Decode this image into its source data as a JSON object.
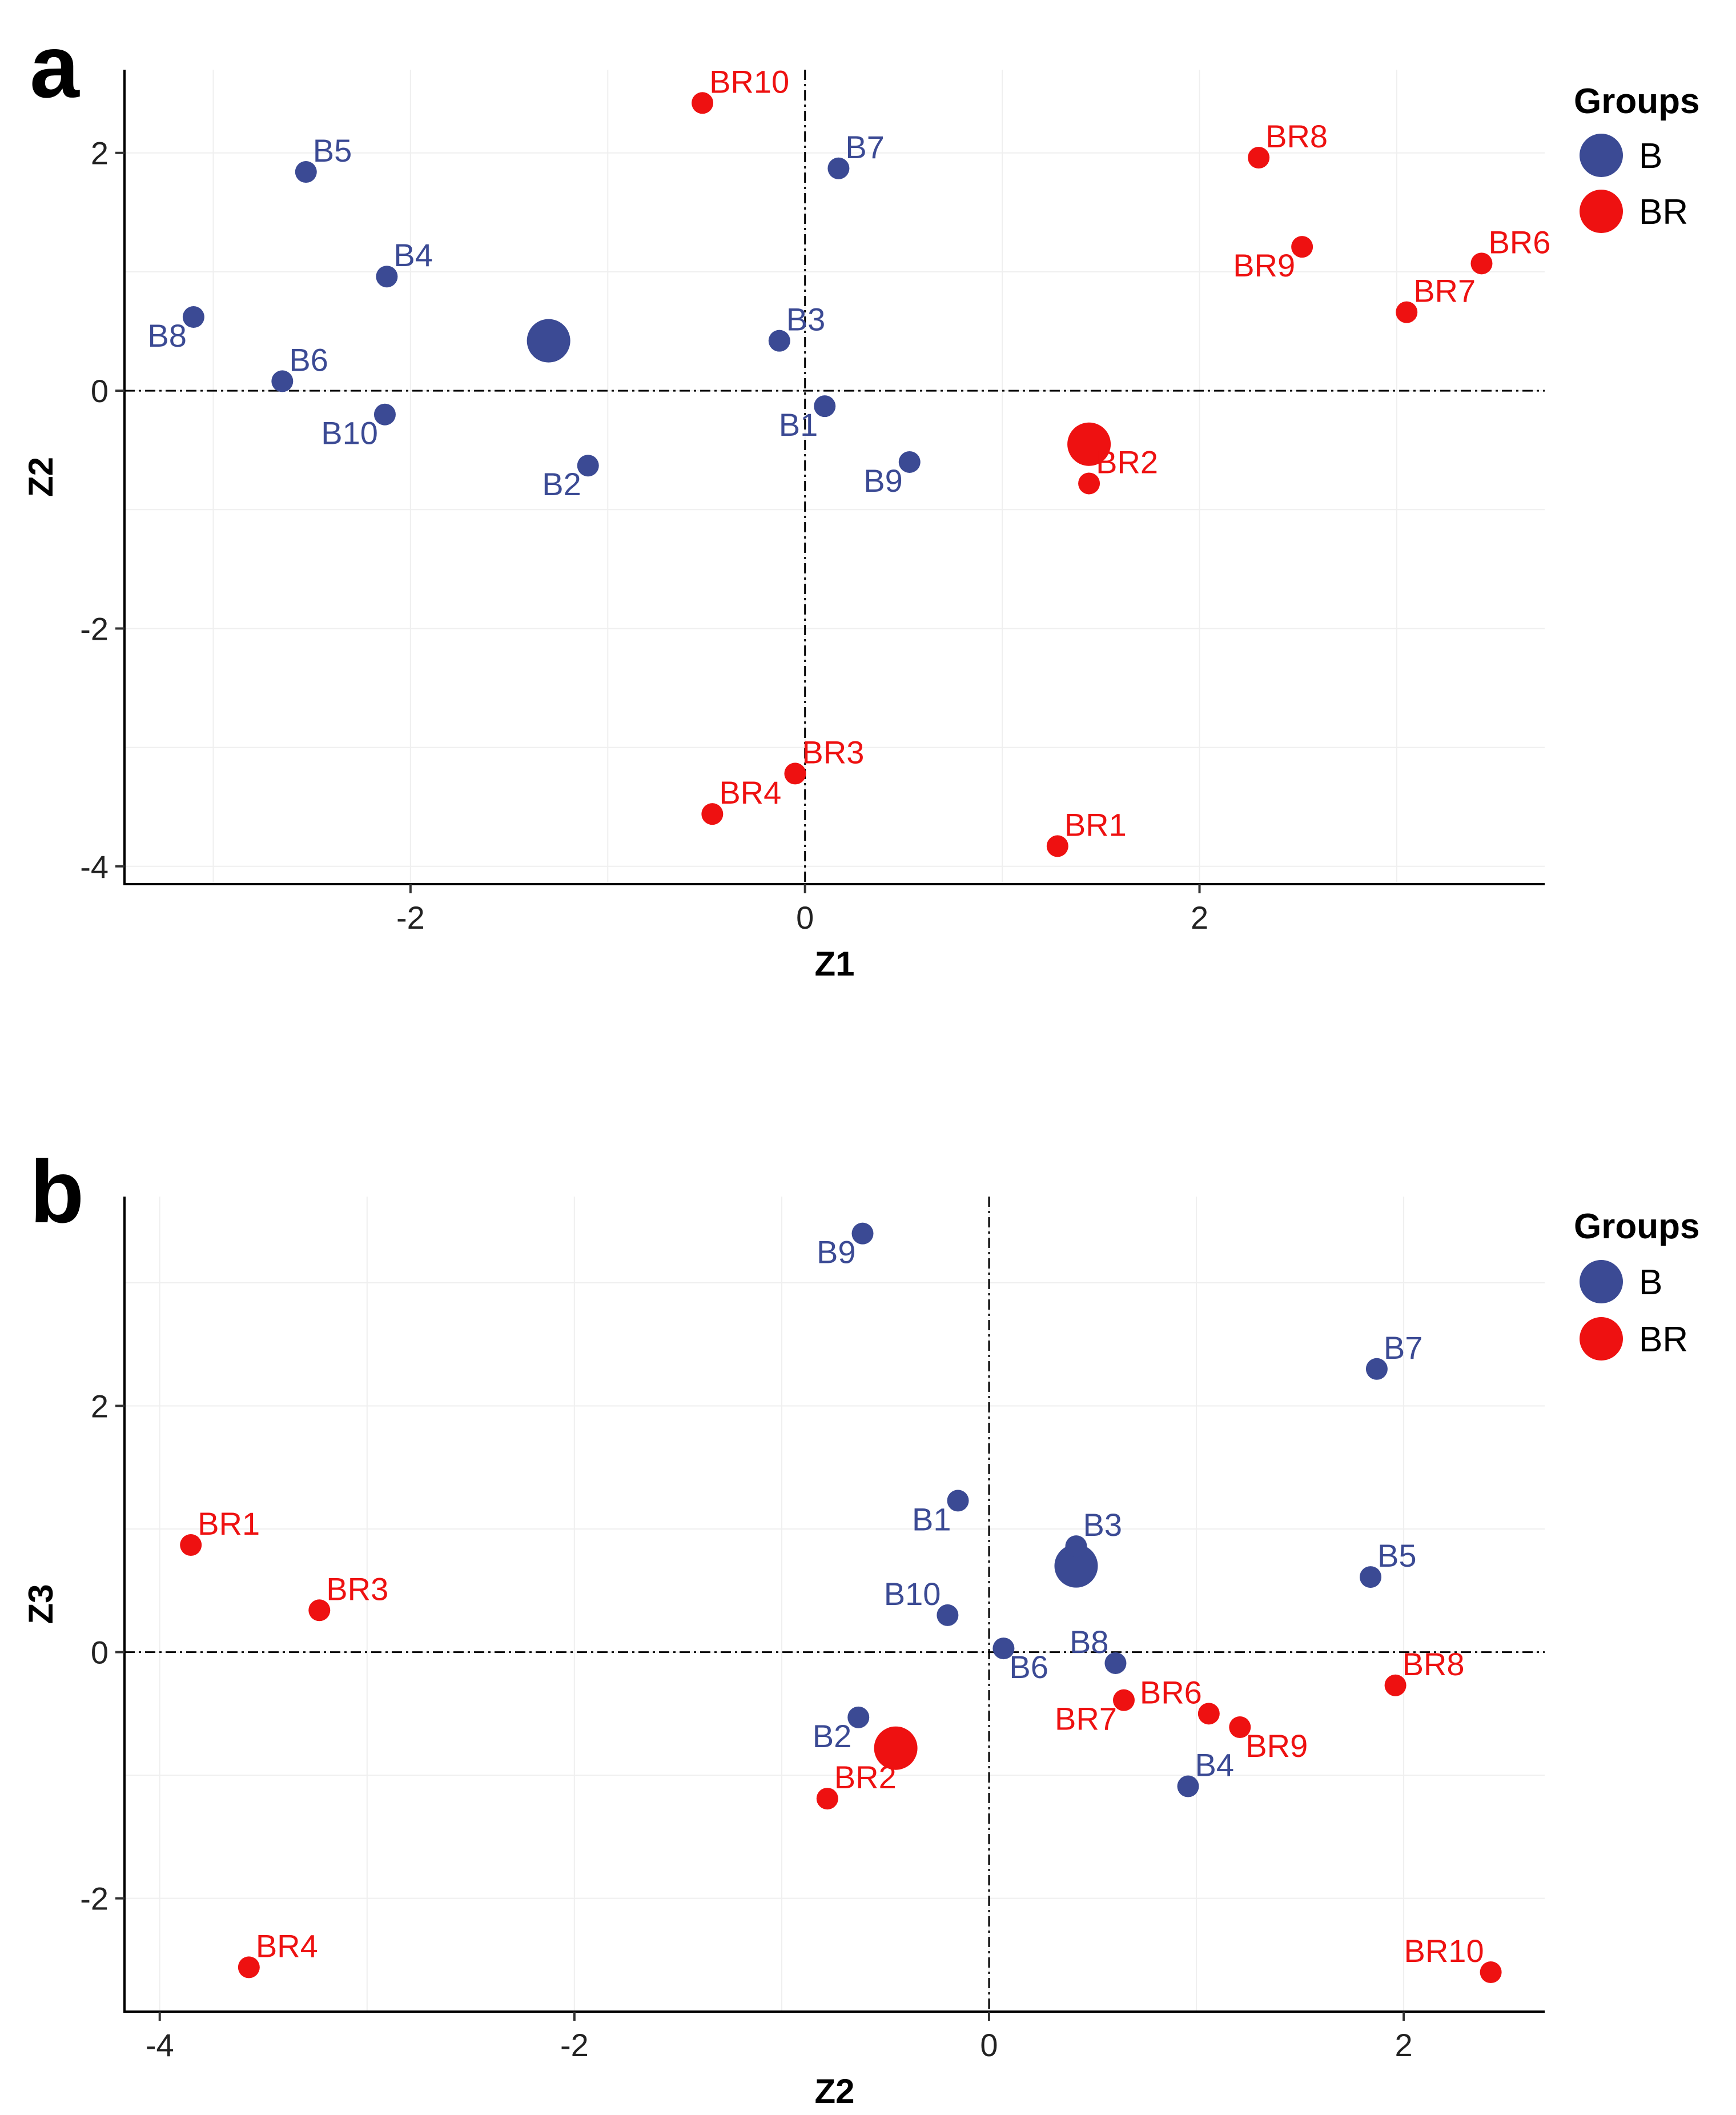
{
  "colors": {
    "B": "#3b4a94",
    "BR": "#ee1111"
  },
  "legend": {
    "title": "Groups",
    "items": [
      {
        "label": "B",
        "group": "B"
      },
      {
        "label": "BR",
        "group": "BR"
      }
    ]
  },
  "chart_data": [
    {
      "panel": "a",
      "type": "scatter",
      "xlabel": "Z1",
      "ylabel": "Z2",
      "xlim": [
        -3.45,
        3.75
      ],
      "ylim": [
        -4.15,
        2.7
      ],
      "xticks": [
        -2,
        0,
        2
      ],
      "yticks": [
        -4,
        -2,
        0,
        2
      ],
      "reference_lines": {
        "x": 0,
        "y": 0
      },
      "centroids": [
        {
          "group": "B",
          "x": -1.3,
          "y": 0.42
        },
        {
          "group": "BR",
          "x": 1.44,
          "y": -0.45
        }
      ],
      "points": [
        {
          "label": "B1",
          "group": "B",
          "x": 0.1,
          "y": -0.13,
          "anchor": "bottomleft"
        },
        {
          "label": "B2",
          "group": "B",
          "x": -1.1,
          "y": -0.63,
          "anchor": "bottomleft"
        },
        {
          "label": "B3",
          "group": "B",
          "x": -0.13,
          "y": 0.42,
          "anchor": "topright"
        },
        {
          "label": "B4",
          "group": "B",
          "x": -2.12,
          "y": 0.96,
          "anchor": "topright"
        },
        {
          "label": "B5",
          "group": "B",
          "x": -2.53,
          "y": 1.84,
          "anchor": "topright"
        },
        {
          "label": "B6",
          "group": "B",
          "x": -2.65,
          "y": 0.08,
          "anchor": "topright"
        },
        {
          "label": "B7",
          "group": "B",
          "x": 0.17,
          "y": 1.87,
          "anchor": "topright"
        },
        {
          "label": "B8",
          "group": "B",
          "x": -3.1,
          "y": 0.62,
          "anchor": "bottomleft"
        },
        {
          "label": "B9",
          "group": "B",
          "x": 0.53,
          "y": -0.6,
          "anchor": "bottomleft"
        },
        {
          "label": "B10",
          "group": "B",
          "x": -2.13,
          "y": -0.2,
          "anchor": "bottomleft"
        },
        {
          "label": "BR1",
          "group": "BR",
          "x": 1.28,
          "y": -3.83,
          "anchor": "topright"
        },
        {
          "label": "BR2",
          "group": "BR",
          "x": 1.44,
          "y": -0.78,
          "anchor": "topright"
        },
        {
          "label": "BR3",
          "group": "BR",
          "x": -0.05,
          "y": -3.22,
          "anchor": "topright"
        },
        {
          "label": "BR4",
          "group": "BR",
          "x": -0.47,
          "y": -3.56,
          "anchor": "topright"
        },
        {
          "label": "BR6",
          "group": "BR",
          "x": 3.43,
          "y": 1.07,
          "anchor": "topright"
        },
        {
          "label": "BR7",
          "group": "BR",
          "x": 3.05,
          "y": 0.66,
          "anchor": "topright"
        },
        {
          "label": "BR8",
          "group": "BR",
          "x": 2.3,
          "y": 1.96,
          "anchor": "topright"
        },
        {
          "label": "BR9",
          "group": "BR",
          "x": 2.52,
          "y": 1.21,
          "anchor": "bottomleft"
        },
        {
          "label": "BR10",
          "group": "BR",
          "x": -0.52,
          "y": 2.42,
          "anchor": "topright"
        }
      ]
    },
    {
      "panel": "b",
      "type": "scatter",
      "xlabel": "Z2",
      "ylabel": "Z3",
      "xlim": [
        -4.17,
        2.68
      ],
      "ylim": [
        -2.92,
        3.7
      ],
      "xticks": [
        -4,
        -2,
        0,
        2
      ],
      "yticks": [
        -2,
        0,
        2
      ],
      "reference_lines": {
        "x": 0,
        "y": 0
      },
      "centroids": [
        {
          "group": "B",
          "x": 0.42,
          "y": 0.7
        },
        {
          "group": "BR",
          "x": -0.45,
          "y": -0.78
        }
      ],
      "points": [
        {
          "label": "B1",
          "group": "B",
          "x": -0.15,
          "y": 1.23,
          "anchor": "bottomleft"
        },
        {
          "label": "B2",
          "group": "B",
          "x": -0.63,
          "y": -0.53,
          "anchor": "bottomleft"
        },
        {
          "label": "B3",
          "group": "B",
          "x": 0.42,
          "y": 0.86,
          "anchor": "topright"
        },
        {
          "label": "B4",
          "group": "B",
          "x": 0.96,
          "y": -1.09,
          "anchor": "topright"
        },
        {
          "label": "B5",
          "group": "B",
          "x": 1.84,
          "y": 0.61,
          "anchor": "topright"
        },
        {
          "label": "B6",
          "group": "B",
          "x": 0.07,
          "y": 0.03,
          "anchor": "bottomright"
        },
        {
          "label": "B7",
          "group": "B",
          "x": 1.87,
          "y": 2.3,
          "anchor": "topright"
        },
        {
          "label": "B8",
          "group": "B",
          "x": 0.61,
          "y": -0.09,
          "anchor": "topleft"
        },
        {
          "label": "B9",
          "group": "B",
          "x": -0.61,
          "y": 3.4,
          "anchor": "bottomleft"
        },
        {
          "label": "B10",
          "group": "B",
          "x": -0.2,
          "y": 0.3,
          "anchor": "topleft"
        },
        {
          "label": "BR1",
          "group": "BR",
          "x": -3.85,
          "y": 0.87,
          "anchor": "topright"
        },
        {
          "label": "BR2",
          "group": "BR",
          "x": -0.78,
          "y": -1.19,
          "anchor": "topright"
        },
        {
          "label": "BR3",
          "group": "BR",
          "x": -3.23,
          "y": 0.34,
          "anchor": "topright"
        },
        {
          "label": "BR4",
          "group": "BR",
          "x": -3.57,
          "y": -2.56,
          "anchor": "topright"
        },
        {
          "label": "BR6",
          "group": "BR",
          "x": 1.06,
          "y": -0.5,
          "anchor": "topleft"
        },
        {
          "label": "BR7",
          "group": "BR",
          "x": 0.65,
          "y": -0.39,
          "anchor": "bottomleft"
        },
        {
          "label": "BR8",
          "group": "BR",
          "x": 1.96,
          "y": -0.27,
          "anchor": "topright"
        },
        {
          "label": "BR9",
          "group": "BR",
          "x": 1.21,
          "y": -0.61,
          "anchor": "bottomright"
        },
        {
          "label": "BR10",
          "group": "BR",
          "x": 2.42,
          "y": -2.6,
          "anchor": "topleft"
        }
      ]
    }
  ]
}
